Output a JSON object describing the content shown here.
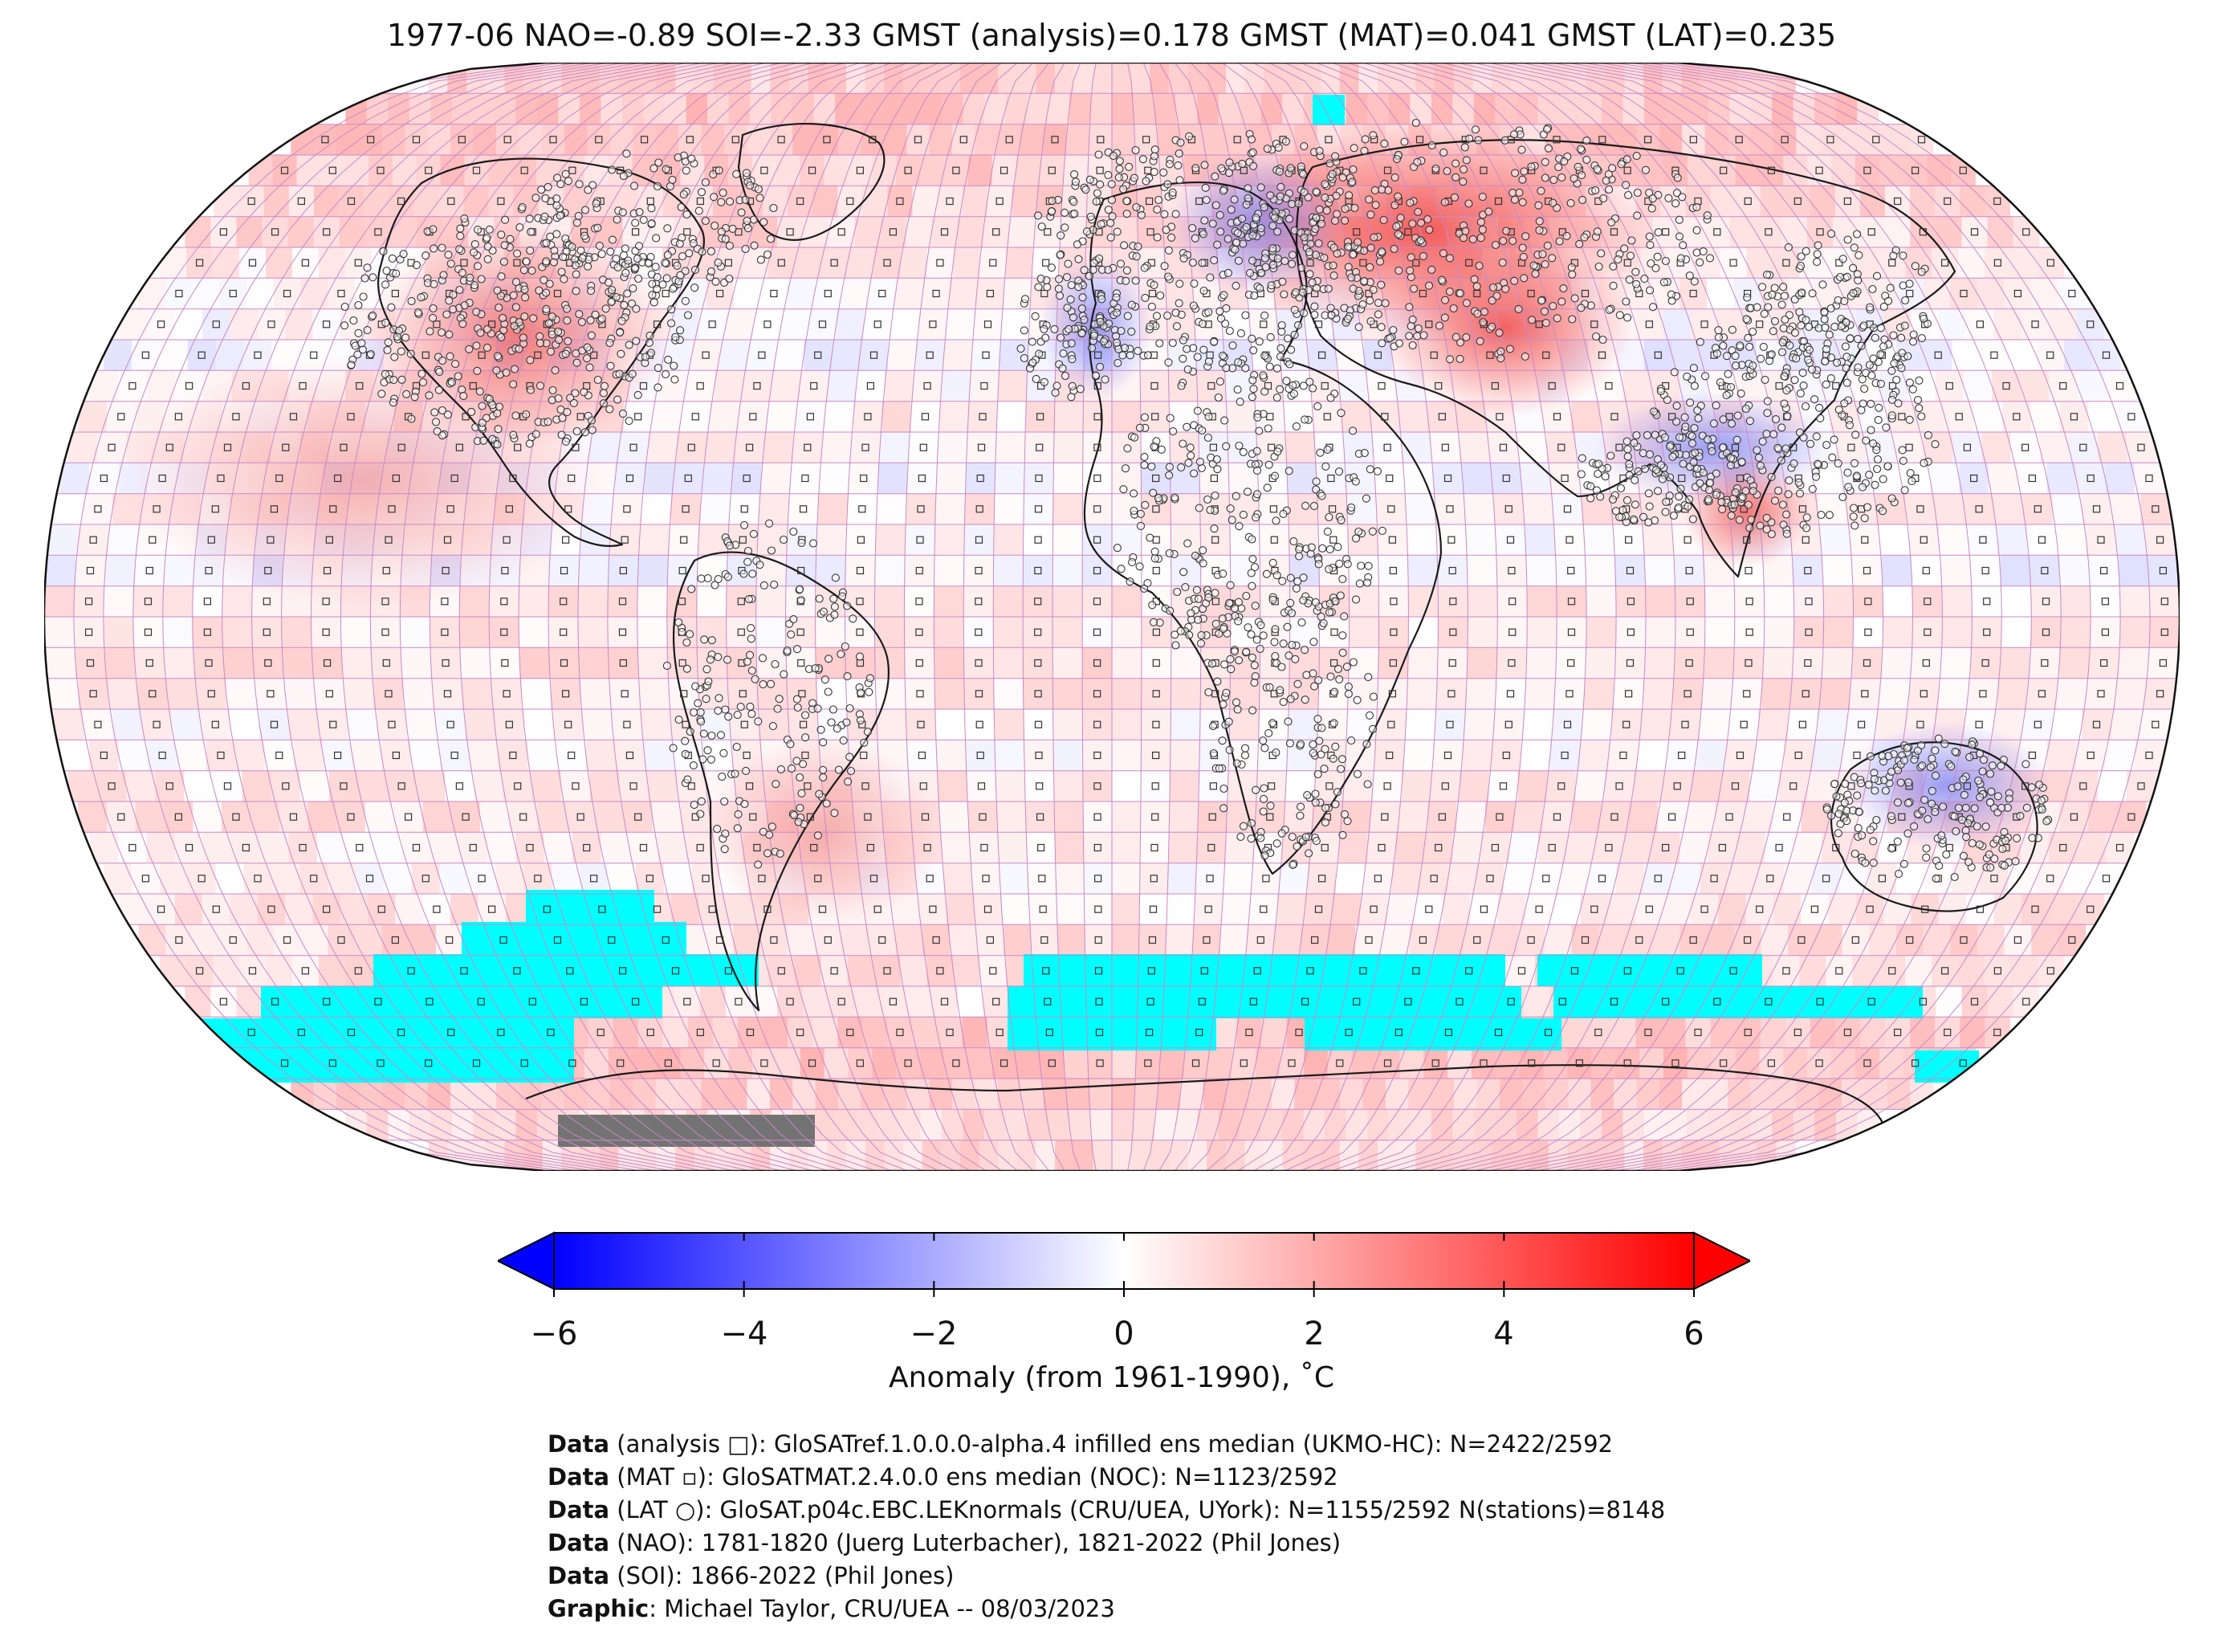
{
  "title": "1977-06 NAO=-0.89 SOI=-2.33 GMST (analysis)=0.178 GMST (MAT)=0.041 GMST (LAT)=0.235",
  "map": {
    "projection": "Robinson",
    "grid": "5x5 degree",
    "colormap": "bwr",
    "no_data_color": "#00ffff",
    "masked_color": "#737373",
    "markers": [
      "analysis square",
      "MAT square",
      "LAT station circle"
    ]
  },
  "colorbar": {
    "ticks": [
      "−6",
      "−4",
      "−2",
      "0",
      "2",
      "4",
      "6"
    ],
    "range": [
      -6,
      6
    ],
    "label": "Anomaly (from 1961-1990), ˚C"
  },
  "credits": [
    {
      "key": "Data",
      "text": " (analysis □): GloSATref.1.0.0.0-alpha.4 infilled ens median (UKMO-HC): N=2422/2592"
    },
    {
      "key": "Data",
      "text": " (MAT ▫): GloSATMAT.2.4.0.0 ens median (NOC): N=1123/2592"
    },
    {
      "key": "Data",
      "text": " (LAT ○): GloSAT.p04c.EBC.LEKnormals (CRU/UEA, UYork): N=1155/2592 N(stations)=8148"
    },
    {
      "key": "Data",
      "text": " (NAO): 1781-1820 (Juerg Luterbacher), 1821-2022 (Phil Jones)"
    },
    {
      "key": "Data",
      "text": " (SOI): 1866-2022 (Phil Jones)"
    },
    {
      "key": "Graphic",
      "text": ": Michael Taylor, CRU/UEA -- 08/03/2023"
    }
  ]
}
